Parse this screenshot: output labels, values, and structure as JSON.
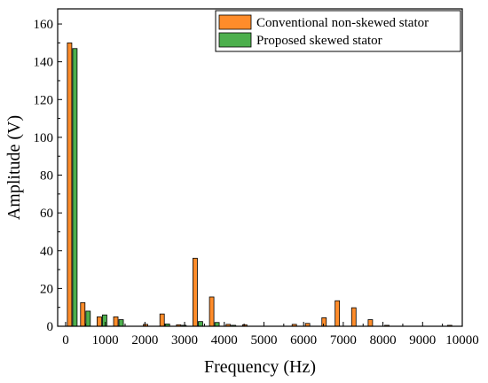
{
  "chart_data": {
    "type": "bar",
    "xlabel": "Frequency (Hz)",
    "ylabel": "Amplitude (V)",
    "xlim": [
      -200,
      10000
    ],
    "ylim": [
      0,
      168
    ],
    "xticks": [
      "0",
      "1000",
      "2000",
      "3000",
      "4000",
      "5000",
      "6000",
      "7000",
      "8000",
      "9000",
      "10000"
    ],
    "yticks": [
      "0",
      "20",
      "40",
      "60",
      "80",
      "100",
      "120",
      "140",
      "160"
    ],
    "legend_position": "top-right",
    "series": [
      {
        "name": "Conventional non-skewed stator",
        "color": "#ff8c2a",
        "points": [
          {
            "x": 167,
            "y": 150
          },
          {
            "x": 500,
            "y": 12.5
          },
          {
            "x": 917,
            "y": 5
          },
          {
            "x": 1333,
            "y": 5
          },
          {
            "x": 2083,
            "y": 1
          },
          {
            "x": 2500,
            "y": 6.5
          },
          {
            "x": 2917,
            "y": 0.8
          },
          {
            "x": 3333,
            "y": 36
          },
          {
            "x": 3750,
            "y": 15.5
          },
          {
            "x": 4167,
            "y": 1
          },
          {
            "x": 4583,
            "y": 0.8
          },
          {
            "x": 5833,
            "y": 1
          },
          {
            "x": 6167,
            "y": 1.5
          },
          {
            "x": 6583,
            "y": 4.5
          },
          {
            "x": 6917,
            "y": 13.5
          },
          {
            "x": 7333,
            "y": 9.8
          },
          {
            "x": 7750,
            "y": 3.5
          },
          {
            "x": 8167,
            "y": 0.5
          },
          {
            "x": 9750,
            "y": 0.5
          }
        ]
      },
      {
        "name": "Proposed skewed stator",
        "color": "#4caf4c",
        "points": [
          {
            "x": 167,
            "y": 147
          },
          {
            "x": 500,
            "y": 8
          },
          {
            "x": 917,
            "y": 6
          },
          {
            "x": 1333,
            "y": 3.5
          },
          {
            "x": 2500,
            "y": 1.2
          },
          {
            "x": 2917,
            "y": 0.5
          },
          {
            "x": 3333,
            "y": 2.5
          },
          {
            "x": 3750,
            "y": 2
          },
          {
            "x": 4167,
            "y": 0.5
          }
        ]
      }
    ]
  }
}
